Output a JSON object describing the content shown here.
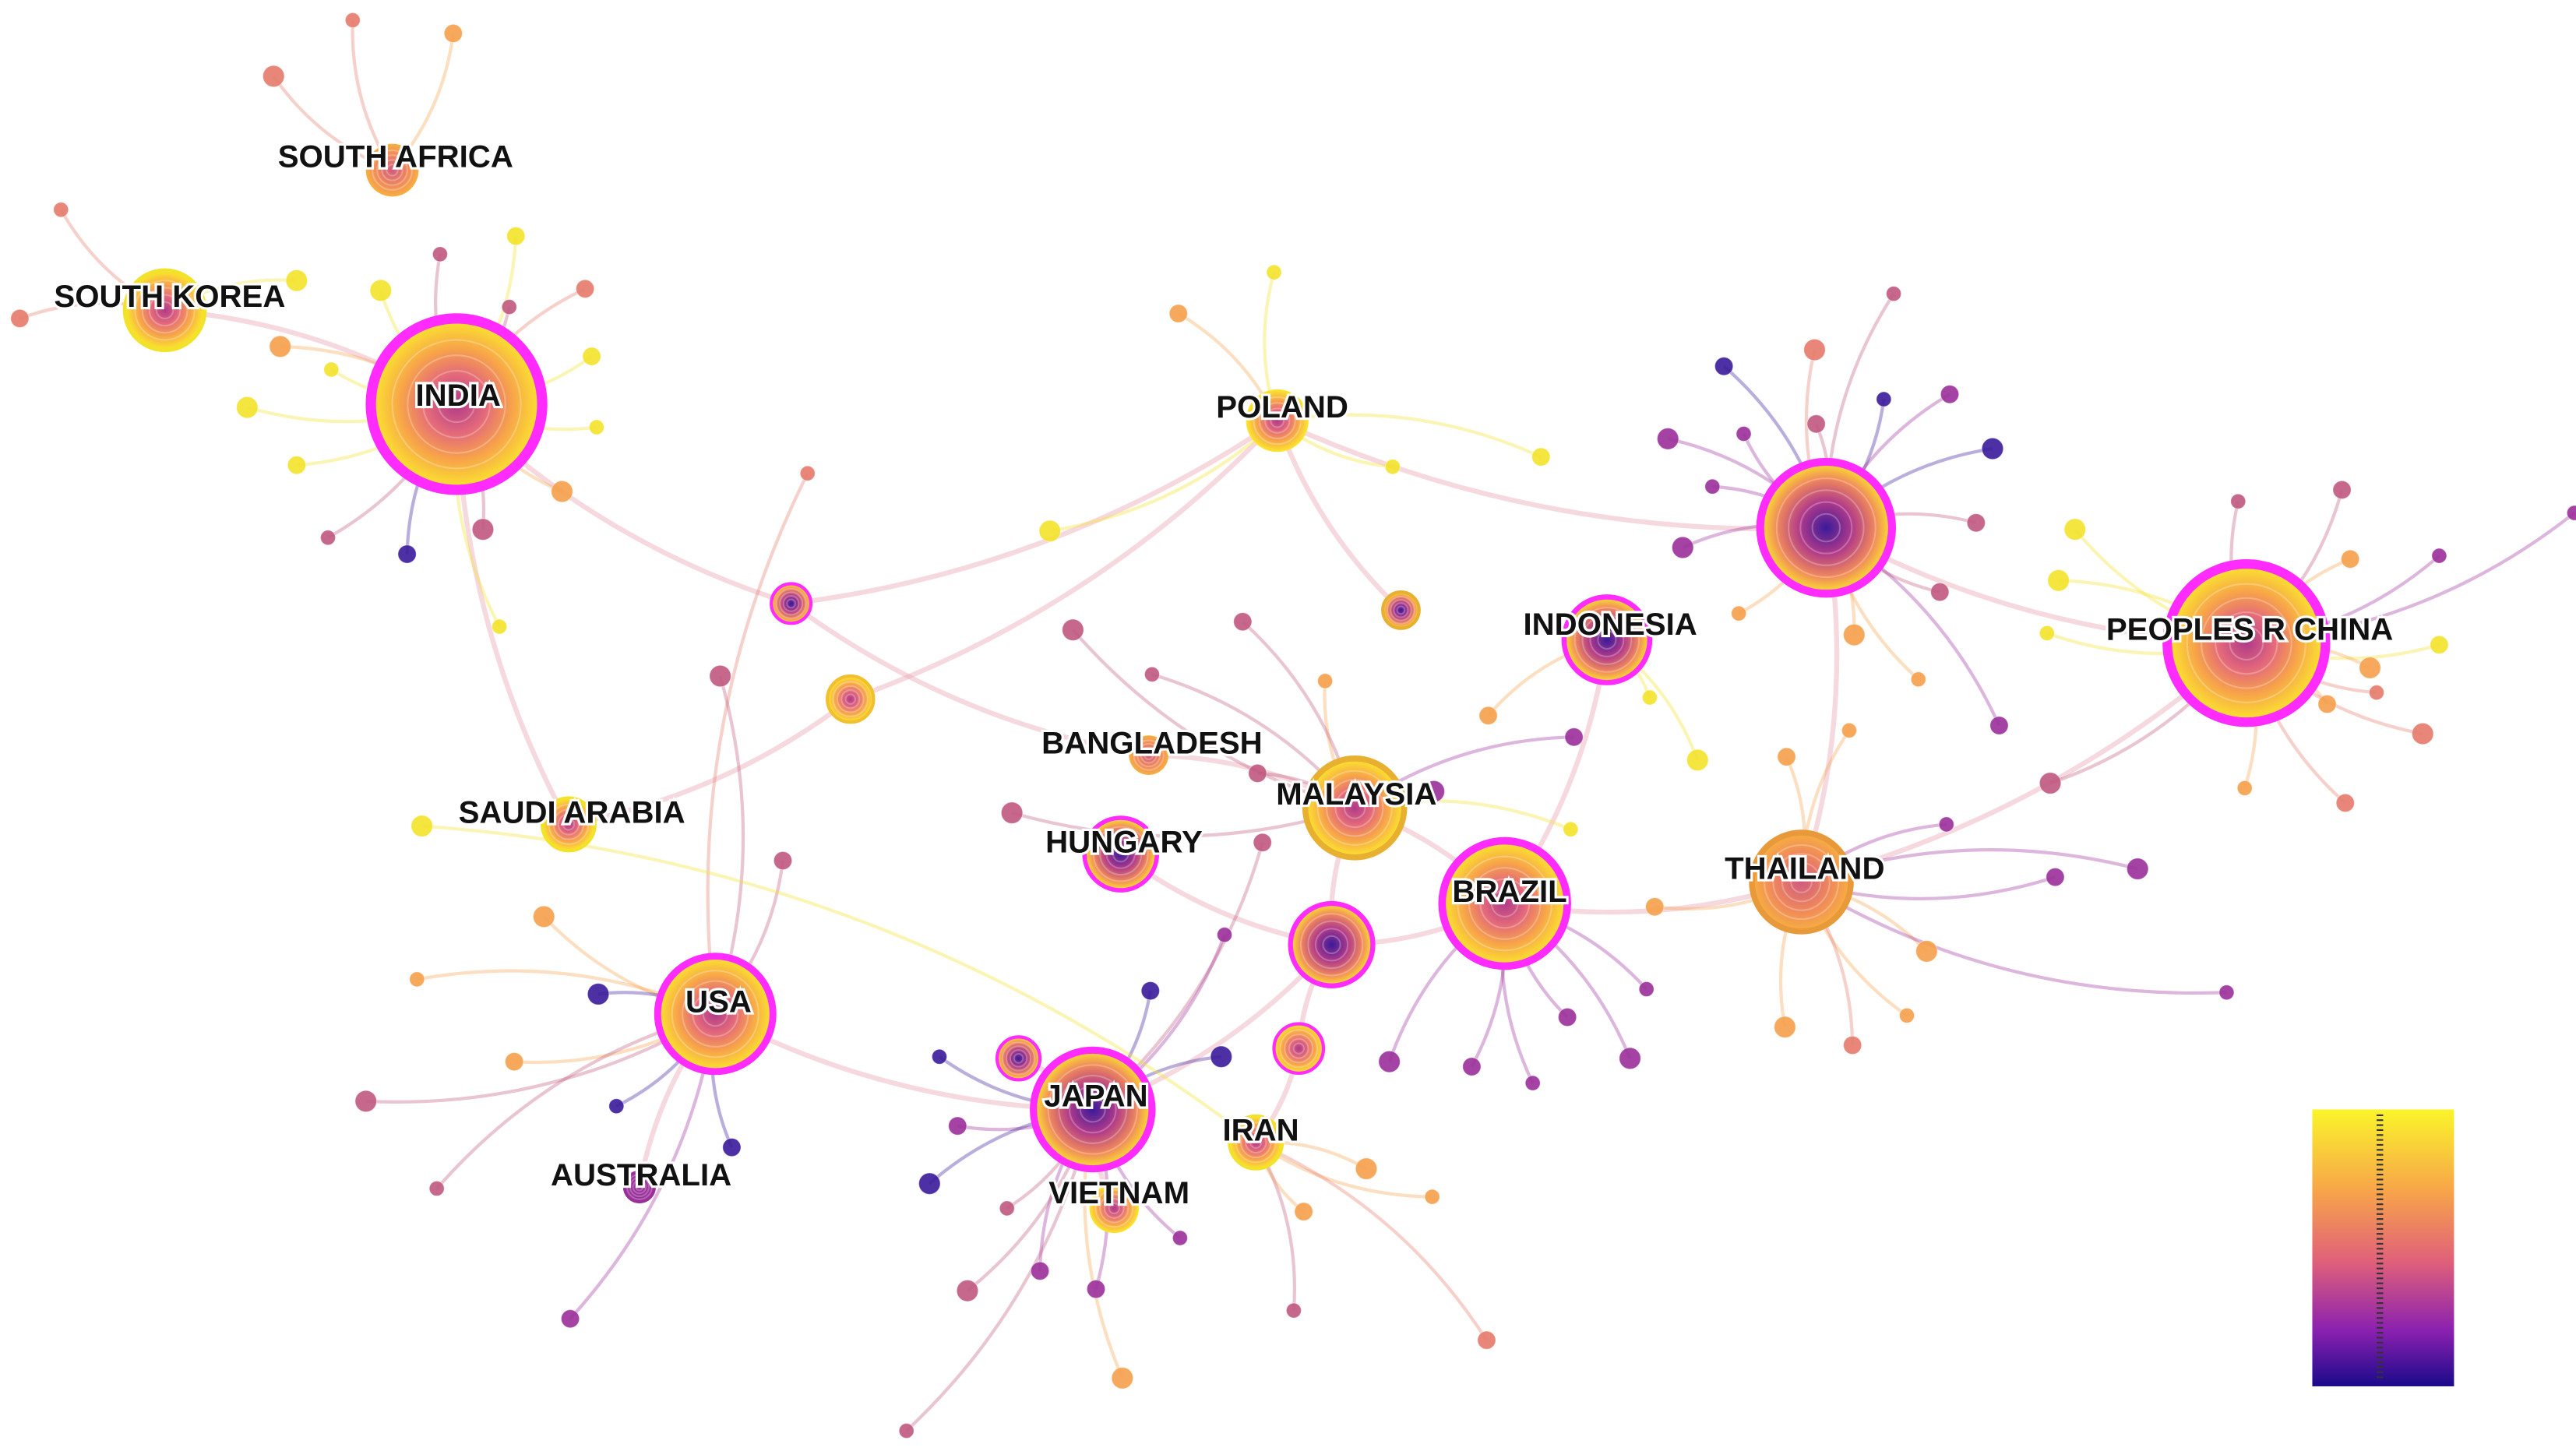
{
  "nodes": [
    {
      "label": "SOUTH AFRICA"
    },
    {
      "label": "SOUTH KOREA"
    },
    {
      "label": "INDIA"
    },
    {
      "label": "POLAND"
    },
    {
      "label": "INDONESIA"
    },
    {
      "label": "PEOPLES R CHINA"
    },
    {
      "label": "BANGLADESH"
    },
    {
      "label": "MALAYSIA"
    },
    {
      "label": "HUNGARY"
    },
    {
      "label": "SAUDI ARABIA"
    },
    {
      "label": "THAILAND"
    },
    {
      "label": "BRAZIL"
    },
    {
      "label": "USA"
    },
    {
      "label": "JAPAN"
    },
    {
      "label": "IRAN"
    },
    {
      "label": "AUSTRALIA"
    },
    {
      "label": "VIETNAM"
    }
  ]
}
